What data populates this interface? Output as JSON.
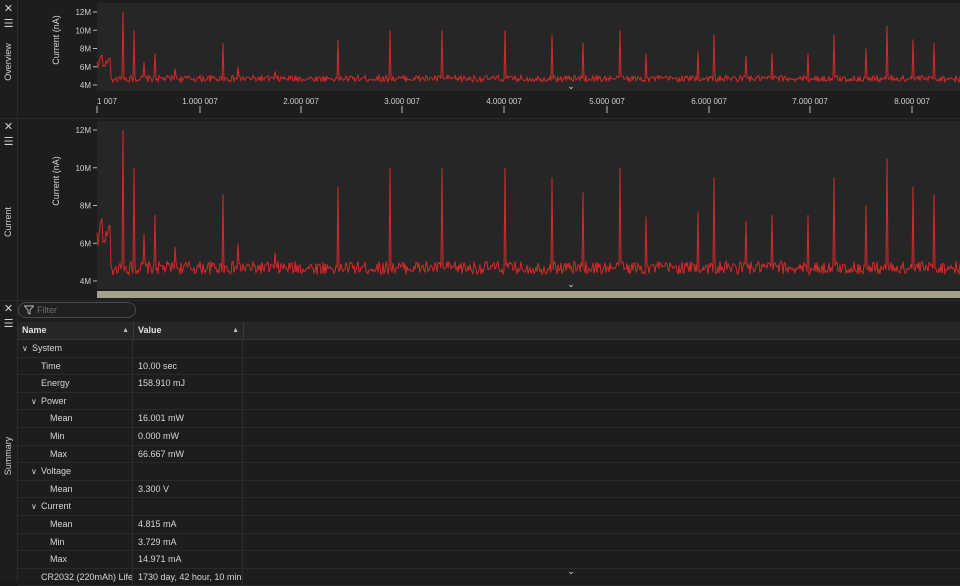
{
  "panels": {
    "overview": {
      "label": "Overview"
    },
    "current": {
      "label": "Current"
    },
    "summary": {
      "label": "Summary"
    }
  },
  "icons": {
    "close": "close-icon",
    "menu": "menu-icon",
    "collapse": "chevron-down-icon",
    "filter": "filter-icon",
    "expand": "chevron-down-icon"
  },
  "colors": {
    "trace": "#d42a2a",
    "plot_bg": "#262626",
    "panel_bg": "#1d1d1d"
  },
  "overview_chart": {
    "ylabel": "Current (nA)",
    "yticks": [
      "12M",
      "10M",
      "8M",
      "6M",
      "4M"
    ],
    "xticks": [
      "1 007",
      "1.000 007",
      "2.000 007",
      "3.000 007",
      "4.000 007",
      "5.000 007",
      "6.000 007",
      "7.000 007",
      "8.000 007"
    ]
  },
  "current_chart": {
    "ylabel": "Current (nA)",
    "yticks": [
      "12M",
      "10M",
      "8M",
      "6M",
      "4M"
    ]
  },
  "chart_data": {
    "type": "line",
    "ylabel": "Current (nA)",
    "ylim": [
      4000000,
      12000000
    ],
    "baseline": 4700000,
    "spikes": [
      {
        "x": 0.05,
        "y": 12000000
      },
      {
        "x": 0.07,
        "y": 10000000
      },
      {
        "x": 0.09,
        "y": 6500000
      },
      {
        "x": 0.11,
        "y": 7500000
      },
      {
        "x": 0.15,
        "y": 5800000
      },
      {
        "x": 0.24,
        "y": 8600000
      },
      {
        "x": 0.27,
        "y": 6000000
      },
      {
        "x": 0.34,
        "y": 5500000
      },
      {
        "x": 0.46,
        "y": 9000000
      },
      {
        "x": 0.56,
        "y": 10000000
      },
      {
        "x": 0.66,
        "y": 10000000
      },
      {
        "x": 0.78,
        "y": 10000000
      },
      {
        "x": 0.87,
        "y": 9500000
      },
      {
        "x": 0.93,
        "y": 8700000
      },
      {
        "x": 1.0,
        "y": 10000000
      },
      {
        "x": 1.05,
        "y": 7400000
      },
      {
        "x": 1.15,
        "y": 7700000
      },
      {
        "x": 1.18,
        "y": 9500000
      },
      {
        "x": 1.24,
        "y": 7200000
      },
      {
        "x": 1.29,
        "y": 7500000
      },
      {
        "x": 1.36,
        "y": 7500000
      },
      {
        "x": 1.41,
        "y": 9500000
      },
      {
        "x": 1.47,
        "y": 8000000
      },
      {
        "x": 1.51,
        "y": 10500000
      },
      {
        "x": 1.56,
        "y": 9000000
      },
      {
        "x": 1.6,
        "y": 8600000
      }
    ]
  },
  "filter": {
    "placeholder": "Filter"
  },
  "table": {
    "headers": {
      "name": "Name",
      "value": "Value"
    },
    "rows": [
      {
        "name": "System",
        "value": "",
        "level": 0,
        "group": true
      },
      {
        "name": "Time",
        "value": "10.00 sec",
        "level": 1
      },
      {
        "name": "Energy",
        "value": "158.910 mJ",
        "level": 1
      },
      {
        "name": "Power",
        "value": "",
        "level": 1,
        "group": true
      },
      {
        "name": "Mean",
        "value": "16.001 mW",
        "level": 2
      },
      {
        "name": "Min",
        "value": "0.000 mW",
        "level": 2
      },
      {
        "name": "Max",
        "value": "66.667 mW",
        "level": 2
      },
      {
        "name": "Voltage",
        "value": "",
        "level": 1,
        "group": true
      },
      {
        "name": "Mean",
        "value": "3.300 V",
        "level": 2
      },
      {
        "name": "Current",
        "value": "",
        "level": 1,
        "group": true
      },
      {
        "name": "Mean",
        "value": "4.815 mA",
        "level": 2
      },
      {
        "name": "Min",
        "value": "3.729 mA",
        "level": 2
      },
      {
        "name": "Max",
        "value": "14.971 mA",
        "level": 2
      },
      {
        "name": "CR2032 (220mAh) Life",
        "value": "1730 day, 42 hour, 10 min",
        "level": 1
      }
    ]
  }
}
